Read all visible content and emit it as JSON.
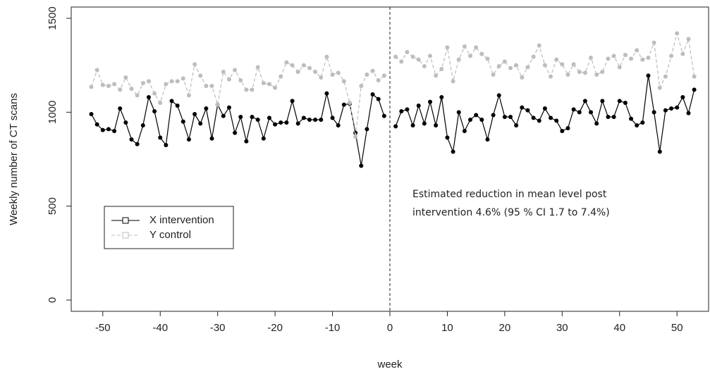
{
  "chart_data": {
    "type": "line",
    "xlabel": "week",
    "ylabel": "Weekly number of CT scans",
    "x": [
      -52,
      -51,
      -50,
      -49,
      -48,
      -47,
      -46,
      -45,
      -44,
      -43,
      -42,
      -41,
      -40,
      -39,
      -38,
      -37,
      -36,
      -35,
      -34,
      -33,
      -32,
      -31,
      -30,
      -29,
      -28,
      -27,
      -26,
      -25,
      -24,
      -23,
      -22,
      -21,
      -20,
      -19,
      -18,
      -17,
      -16,
      -15,
      -14,
      -13,
      -12,
      -11,
      -10,
      -9,
      -8,
      -7,
      -6,
      -5,
      -4,
      -3,
      -2,
      -1,
      0,
      1,
      2,
      3,
      4,
      5,
      6,
      7,
      8,
      9,
      10,
      11,
      12,
      13,
      14,
      15,
      16,
      17,
      18,
      19,
      20,
      21,
      22,
      23,
      24,
      25,
      26,
      27,
      28,
      29,
      30,
      31,
      32,
      33,
      34,
      35,
      36,
      37,
      38,
      39,
      40,
      41,
      42,
      43,
      44,
      45,
      46,
      47,
      48,
      49,
      50,
      51,
      52,
      53
    ],
    "series": [
      {
        "name": "X intervention",
        "color": "#000000",
        "dashed": false,
        "values": [
          990,
          935,
          905,
          910,
          900,
          1020,
          945,
          855,
          830,
          930,
          1080,
          1005,
          865,
          825,
          1060,
          1035,
          950,
          855,
          990,
          940,
          1020,
          860,
          1040,
          980,
          1025,
          890,
          975,
          845,
          975,
          960,
          860,
          970,
          935,
          945,
          945,
          1060,
          940,
          970,
          960,
          960,
          960,
          1100,
          970,
          930,
          1040,
          1045,
          890,
          715,
          910,
          1095,
          1070,
          980,
          null,
          925,
          1005,
          1015,
          930,
          1035,
          940,
          1055,
          930,
          1080,
          865,
          790,
          1000,
          900,
          960,
          985,
          960,
          855,
          985,
          1090,
          975,
          975,
          930,
          1025,
          1010,
          970,
          955,
          1020,
          970,
          955,
          900,
          915,
          1015,
          1000,
          1060,
          1000,
          940,
          1060,
          975,
          975,
          1060,
          1050,
          965,
          930,
          945,
          1195,
          1000,
          790,
          1010,
          1020,
          1025,
          1080,
          995,
          1120
        ]
      },
      {
        "name": "Y control",
        "color": "#bdbdbd",
        "dashed": true,
        "values": [
          1135,
          1225,
          1145,
          1140,
          1150,
          1120,
          1185,
          1125,
          1090,
          1155,
          1165,
          1100,
          1050,
          1150,
          1165,
          1165,
          1180,
          1090,
          1255,
          1195,
          1140,
          1140,
          1040,
          1215,
          1175,
          1225,
          1170,
          1120,
          1120,
          1240,
          1155,
          1150,
          1130,
          1190,
          1265,
          1250,
          1215,
          1250,
          1235,
          1215,
          1185,
          1295,
          1200,
          1210,
          1165,
          1050,
          870,
          1140,
          1200,
          1220,
          1170,
          1195,
          null,
          1295,
          1270,
          1320,
          1295,
          1280,
          1245,
          1300,
          1195,
          1230,
          1345,
          1165,
          1280,
          1350,
          1300,
          1345,
          1310,
          1285,
          1200,
          1245,
          1270,
          1235,
          1250,
          1185,
          1240,
          1295,
          1355,
          1250,
          1190,
          1280,
          1255,
          1200,
          1255,
          1215,
          1210,
          1290,
          1200,
          1215,
          1285,
          1300,
          1240,
          1305,
          1285,
          1330,
          1280,
          1290,
          1370,
          1130,
          1190,
          1300,
          1420,
          1310,
          1390,
          1190
        ]
      }
    ],
    "xlim": [
      -55.5,
      55.5
    ],
    "ylim": [
      -60,
      1560
    ],
    "xticks": [
      -50,
      -40,
      -30,
      -20,
      -10,
      0,
      10,
      20,
      30,
      40,
      50
    ],
    "yticks": [
      0,
      500,
      1000,
      1500
    ],
    "vline": 0,
    "annotation": [
      "Estimated reduction in mean level post",
      "intervention  4.6% (95 % CI 1.7 to 7.4%)"
    ],
    "legend": "left"
  }
}
